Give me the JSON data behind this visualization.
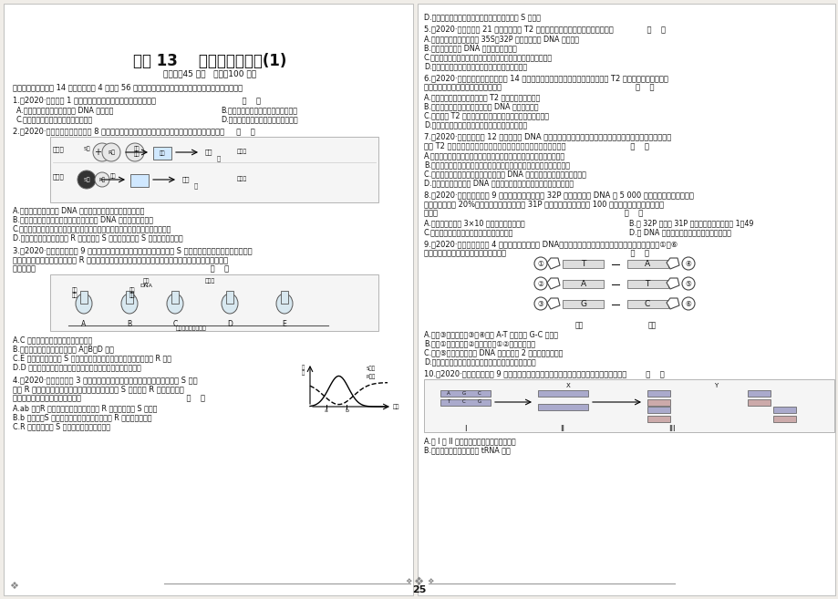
{
  "bg_color": "#f0ede8",
  "page_color": "#ffffff",
  "title": "专题 13    遗传的分子基础(1)",
  "subtitle": "（时间：45 分钟   分值：100 分）",
  "section1": "一、选择题：本题共 14 小题，每小题 4 分，共 56 分。每小题四个选项中，只有一个是符合题目要求的。",
  "q1": "1.【2020·深圳二调 1 题】下列关于遗传物质的说法，正确的是                                    （    ）",
  "q1a": "A.蓝藻叶绿素合成相关酶是由 DNA 控制合成",
  "q1b": "B.烟草花叶细胞的遗传物质是核糖核酸",
  "q1c": "C.发藻的遗传物质含有核糖和胸腺嘧啶",
  "q1d": "D.肺炎双球菌的遗传物质全都位于拟核",
  "q2": "2.【2020·南京师大实验中学一模 8 题】如图是格里菲思实验部分示意图，下列有关说法正确的是     （    ）",
  "q2a": "A.两组实验对照，证明 DNA 是遗传物质、蛋白质不是遗传物质",
  "q2b": "B.第一组小鼠不死亡，是因为肺炎双球菌的 DNA 和蛋白质均已变性",
  "q2c": "C.从第二组死亡小鼠体内分离出的肺炎双球菌在培养基上培养，都会产生光滑菌落",
  "q2d": "D.第二组小鼠死亡，说明有 R 菌转化成了 S 菌，进一步说明 S 菌中存在转化因子",
  "q3_line1": "3.【2020·江苏扬州检测二 9 题】肺炎双球菌有许多类型，其中有荚膜的 S 型菌有毒性，能引起人患肺炎或使",
  "q3_line2": "小鼠患败血症而死亡；无荚膜的 R 型菌无毒性。下图为研究人员所做的细菌转化实验示意图，下列相关说",
  "q3_line3": "法正确的是                                                                         （    ）",
  "q3a": "A.C 组为对照组，实验结果为小鼠死亡",
  "q3b": "B.能导致小鼠患败血症死亡的有 A、B、D 三组",
  "q3c": "C.E 组实验表明，加入 S 型菌的蛋白质后试管中长出的还是无毒性的 R 型菌",
  "q3d": "D.D 组产生的有毒性的肺炎双球菌不能将有毒性性状遗传给后代",
  "q4_line1": "4.【2020·广东汕头质检 3 题】在肺炎双球菌的转化实验中，将加热杀死的 S 型细",
  "q4_line2": "菌与 R 型活细菌混合，注射到小鼠体内，小鼠体内 S 型细菌和 R 型细菌的含量",
  "q4_line3": "变化如图所示，下列说法正确的是                                            （    ）",
  "q4a": "A.ab 段，R 型细菌数量下降主要是因为 R 型细菌转化为 S 型细菌",
  "q4b": "B.b 点之后，S 型细菌降低了小鼠免疫功能致使 R 型细菌大量繁殖",
  "q4c": "C.R 型细菌转化为 S 型细菌的原理是基因突变",
  "q4d_right": "D.若小鼠死亡，则死亡小鼠体内只能分离出活的 S 型细菌",
  "q5": "5.【2020·洛阳统考一 21 题】下列关于 T2 噬菌体侵染细菌实验的叙述，正确的是              （    ）",
  "q5a": "A.对两组噬菌体应分别使用 35S、32P 对其蛋白质和 DNA 进行标记",
  "q5b": "B.该实验还能证明 DNA 的半保留复制方式",
  "q5c": "C.正常操作情况下两组实验的上清液和沉淀物的放射性强弱有差异",
  "q5d": "D.该实验可以利用肺炎双球菌代替大肠杆菌进行试验",
  "q6_line1": "6.【2020·广州、深圳学调联盟二调 14 题】赫尔希和蔡斯精妙的实验设计思路使得 T2 噬菌体侵染大肠杆菌的",
  "q6_line2": "实验更具有说服力，相关叙述错误的是                                                        （    ）",
  "q6a": "A.选择了化学组成和结构简单的 T2 噬菌体作为实验材料",
  "q6b": "B.利用放射性同位素标记技术区分 DNA 和蛋白质分子",
  "q6c": "C.被标记的 T2 噬菌体与大肠杆菌混合后，需长时间保温培养",
  "q6d": "D.实验后离试管中的上清液和沉淀物进行放射性检测",
  "q7_line1": "7.【2020·辽宁五校期末 12 题】在确定 DNA 是遗传物质的研究过程中，艾弗里的体外转化实验以及赫尔希和",
  "q7_line2": "蔡斯 T2 噬菌体的侵染实验有着重要的意义。下列相关叙述错误的是                           （    ）",
  "q7a": "A.两个实验选用的实验材料除菌或病毒，均具有结构简单、繁殖快的优点",
  "q7b": "B.两个实验都应用了细菌培养技术和同位素标记技术为实验成功提供了保障",
  "q7c": "C.两个实验的设计思路共同点都是设法把 DNA 与蛋白质分开，研究各自的效应",
  "q7d": "D.两个实验都可以说明 DNA 可以从一个生物体内转移到另一个生物体内",
  "q8_line1": "8.【2020·天津和平区期末 9 题】假设一个双链均被 32P 标记的噬菌体 DNA 由 5 000 个碱基对组成，其中腺嘌",
  "q8_line2": "呤占全部碱基的 20%，用这个噬菌体侵染只含 31P 的大肠杆菌，共释放出 100 个子代噬菌体，下列叙述正",
  "q8_line3": "确的是                                                                              （    ）",
  "q8a": "A.该过程至少需要 3×10 个鸟嘌呤脱氧核苷酸",
  "q8b": "B.含 32P 与只含 31P 的子代噬菌体的比例为 1：49",
  "q8c": "C.噬菌体增殖需要细菌提供模板、原料和酶等",
  "q8d": "D.该 DNA 发生突变，其控制的性状即发生改变",
  "q9_line1": "9.【2020·福建漳州质检一 4 题】如下图为某双链 DNA（由甲链和乙链组成）的局部结构简图，图中数字①～⑥",
  "q9_line2": "表示不同物质或氢键。下列叙述正确的是                                                    （    ）",
  "q9a": "A.图中③为氢键，且③与④可为 A-T 碱基对或 G-C 碱基对",
  "q9b": "B.图中①为腺嘌呤，②为胞嘧啶，①②通过氢键连接",
  "q9c": "C.图中⑤为磷酸基团，此 DNA 片段中含有 2 个游离的磷酸基团",
  "q9d": "D.图中甲链与乙链方向相反，但两条链碱基排列顺序相同",
  "q10": "10.【2020·湖南郴州质检一 9 题】如图表示发生在细胞中的某过程。下列相关叙述错误的是        （    ）",
  "q10a": "A.从 I 到 II 过程需要酶的催化，也消耗能量",
  "q10b": "B.图示过程消耗的原料无需 tRNA 搬运",
  "page_num": "25"
}
